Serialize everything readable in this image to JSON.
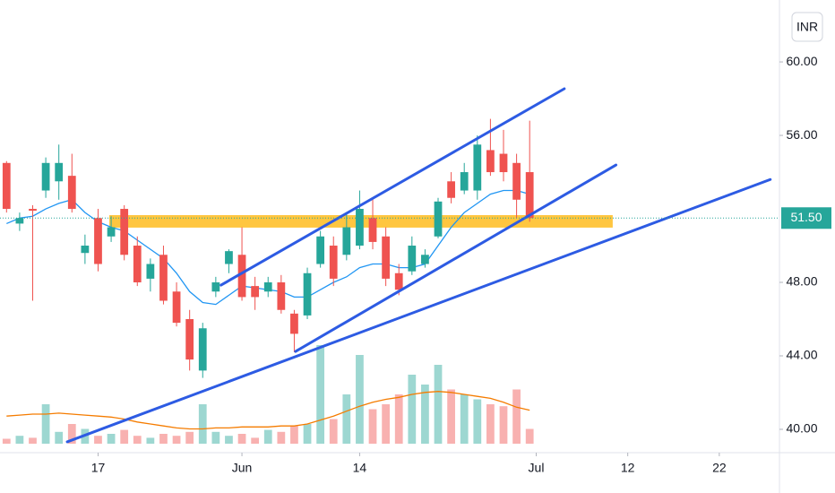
{
  "chart_data": {
    "type": "candlestick",
    "currency": "INR",
    "x": [
      0,
      1,
      2,
      3,
      4,
      5,
      6,
      7,
      8,
      9,
      10,
      11,
      12,
      13,
      14,
      15,
      16,
      17,
      18,
      19,
      20,
      21,
      22,
      23,
      24,
      25,
      26,
      27,
      28,
      29,
      30,
      31,
      32,
      33,
      34,
      35,
      36,
      37,
      38,
      39,
      40
    ],
    "open": [
      54.5,
      51.2,
      52,
      53,
      53.5,
      53.8,
      49.6,
      51.5,
      50.5,
      52,
      50,
      48.2,
      49.5,
      47.5,
      46,
      43.2,
      47.5,
      49,
      49.5,
      47.8,
      47.5,
      48,
      46.3,
      46.2,
      49,
      50,
      49.5,
      50,
      51.5,
      50.5,
      48.5,
      48.6,
      49,
      50.5,
      53.5,
      53,
      53,
      55.2,
      55,
      54.5,
      54
    ],
    "high": [
      54.6,
      51.8,
      52.2,
      54.8,
      55.5,
      55,
      50.6,
      52,
      51.6,
      52.2,
      50.5,
      49.3,
      50,
      48,
      46.5,
      45.8,
      48.3,
      49.8,
      51,
      48.3,
      48.3,
      48.4,
      46.5,
      48.8,
      50.8,
      50.5,
      51.8,
      53,
      52.6,
      51,
      49,
      50.5,
      49.8,
      52.6,
      54,
      54.5,
      56,
      56.9,
      56.3,
      55,
      56.8
    ],
    "low": [
      51.8,
      50.8,
      47,
      52.6,
      52.5,
      51.8,
      49,
      48.6,
      50.2,
      49.2,
      47.8,
      47.5,
      46.8,
      45.6,
      43.2,
      42.8,
      47.2,
      48.5,
      47,
      46.5,
      47.2,
      46.3,
      44.2,
      46,
      48.8,
      47.8,
      49.2,
      49.8,
      49.8,
      47.8,
      47.3,
      48.4,
      48.8,
      50.4,
      52.3,
      52.8,
      52.5,
      53.8,
      53.5,
      51.5,
      51.3
    ],
    "close": [
      52,
      51.5,
      51.9,
      54.5,
      54.5,
      52,
      50,
      49,
      51,
      49.5,
      48,
      49,
      47,
      45.8,
      43.8,
      45.5,
      48,
      49.7,
      47.2,
      47.2,
      48,
      46.5,
      45.2,
      48.5,
      50.5,
      48.2,
      51,
      52,
      50.2,
      48.2,
      47.6,
      50,
      49.5,
      52.4,
      52.6,
      54,
      55.5,
      54,
      54,
      52.5,
      51.5
    ],
    "up_color": "#26a69a",
    "down_color": "#ef5350",
    "ma": {
      "color": "#2196f3",
      "values": [
        51.2,
        51.5,
        51.6,
        52,
        52.3,
        52.5,
        51.8,
        51.3,
        51,
        50.8,
        50.3,
        49.8,
        49.3,
        48.5,
        47.5,
        46.9,
        46.8,
        47.3,
        47.8,
        47.7,
        47.6,
        47.5,
        47.2,
        47.2,
        47.6,
        48,
        48.3,
        48.8,
        49,
        49,
        48.8,
        48.8,
        49,
        50,
        51,
        51.8,
        52.3,
        52.8,
        53,
        53,
        52.8
      ]
    },
    "volume": {
      "axis": "y2",
      "values": [
        5,
        8,
        6,
        40,
        12,
        20,
        15,
        8,
        10,
        14,
        8,
        6,
        10,
        8,
        12,
        40,
        12,
        8,
        10,
        6,
        14,
        12,
        18,
        20,
        100,
        25,
        50,
        90,
        35,
        40,
        50,
        70,
        60,
        80,
        55,
        50,
        45,
        40,
        38,
        55,
        15
      ]
    },
    "volume_ma": {
      "axis": "y2",
      "color": "#f57c00",
      "values": [
        28,
        29,
        30,
        30,
        31,
        30,
        29,
        28,
        27,
        25,
        22,
        20,
        18,
        16,
        15,
        15,
        16,
        16,
        17,
        17,
        17,
        18,
        18,
        20,
        24,
        28,
        33,
        38,
        42,
        45,
        47,
        50,
        52,
        53,
        52,
        50,
        48,
        46,
        42,
        37,
        34
      ]
    },
    "xlim": [
      -0.5,
      59.1
    ],
    "xticks": [
      {
        "value": 7,
        "label": "17"
      },
      {
        "value": 18,
        "label": "Jun"
      },
      {
        "value": 27,
        "label": "14"
      },
      {
        "value": 40.5,
        "label": "Jul"
      },
      {
        "value": 47.5,
        "label": "12"
      },
      {
        "value": 54.5,
        "label": "22"
      }
    ],
    "ylim": [
      38.73,
      63.37
    ],
    "yticks": [
      {
        "value": 40,
        "label": "40.00"
      },
      {
        "value": 44,
        "label": "44.00"
      },
      {
        "value": 48,
        "label": "48.00"
      },
      {
        "value": 56,
        "label": "56.00"
      },
      {
        "value": 60,
        "label": "60.00"
      }
    ],
    "y2lim": [
      0,
      100
    ],
    "last_price": {
      "value": 51.5,
      "label": "51.50"
    },
    "zone": {
      "x": [
        7.86,
        46.35
      ],
      "y": [
        50.98,
        51.66
      ],
      "color": "#ffb300"
    },
    "trendline_color": "#2d5be3",
    "trendlines": [
      {
        "x": [
          16.4,
          42.65
        ],
        "y": [
          47.85,
          58.54
        ]
      },
      {
        "x": [
          22.1,
          46.6
        ],
        "y": [
          44.24,
          54.39
        ]
      },
      {
        "x": [
          4.64,
          58.4
        ],
        "y": [
          39.32,
          53.6
        ]
      }
    ]
  }
}
